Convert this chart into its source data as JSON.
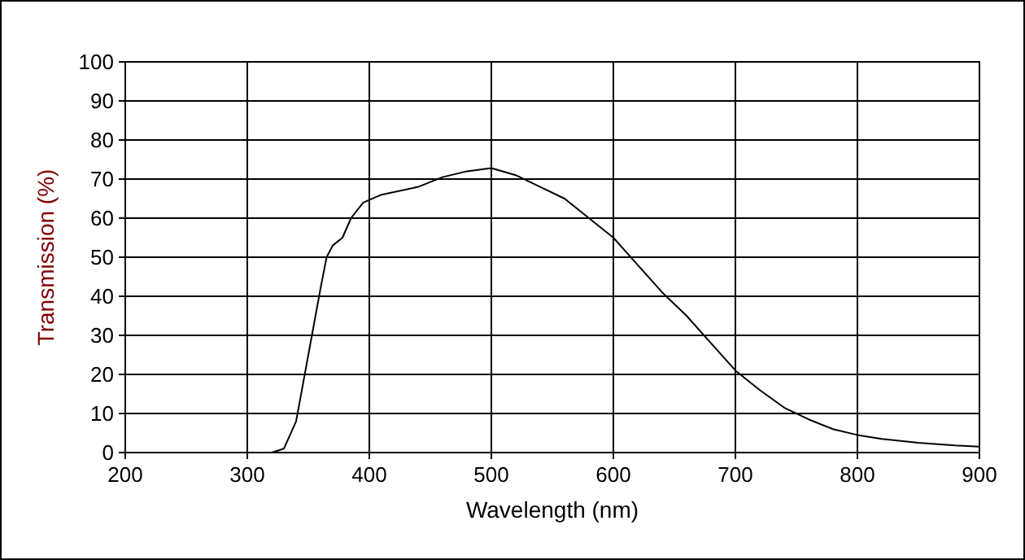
{
  "chart_data": {
    "type": "line",
    "xlabel": "Wavelength (nm)",
    "ylabel": "Transmission (%)",
    "x": [
      320,
      330,
      340,
      350,
      360,
      365,
      370,
      378,
      385,
      395,
      410,
      440,
      460,
      480,
      500,
      520,
      540,
      560,
      580,
      600,
      620,
      640,
      660,
      680,
      700,
      720,
      740,
      760,
      780,
      800,
      820,
      850,
      880,
      900
    ],
    "series": [
      {
        "color": "#000000",
        "values": [
          0,
          1,
          8,
          25,
          42,
          50,
          53,
          55,
          60,
          64,
          66,
          68,
          70.5,
          72,
          72.8,
          71,
          68,
          65,
          60,
          55,
          48,
          41,
          35,
          28,
          21,
          16,
          11.5,
          8.5,
          6,
          4.5,
          3.5,
          2.5,
          1.8,
          1.5
        ]
      }
    ],
    "xlim": [
      200,
      900
    ],
    "xticks": [
      200,
      300,
      400,
      500,
      600,
      700,
      800,
      900
    ],
    "ylim": [
      0,
      100
    ],
    "yticks": [
      0,
      10,
      20,
      30,
      40,
      50,
      60,
      70,
      80,
      90,
      100
    ],
    "grid": true
  }
}
